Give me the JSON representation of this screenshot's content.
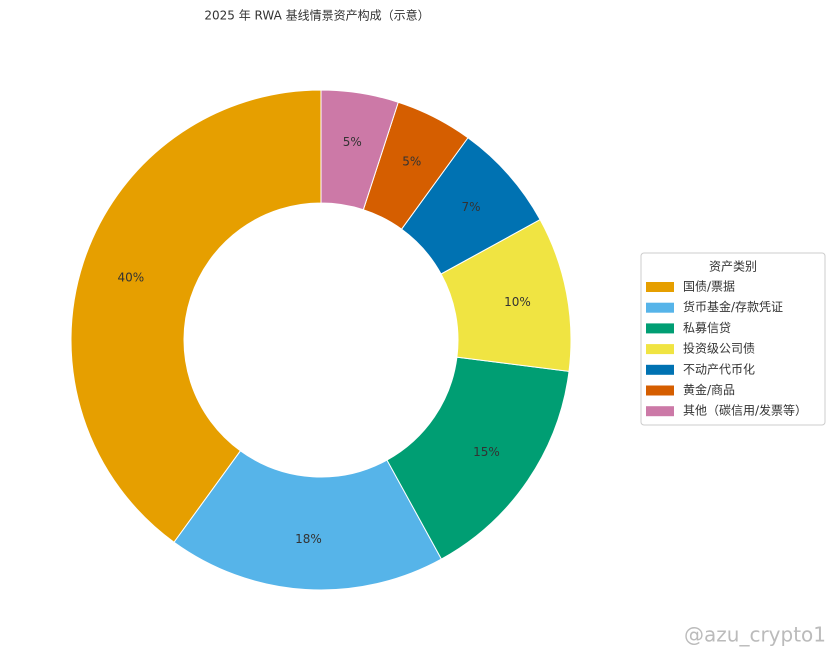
{
  "chart_data": {
    "type": "donut",
    "title": "2025 年 RWA 基线情景资产构成（示意）",
    "categories": [
      "国债/票据",
      "货币基金/存款凭证",
      "私募信贷",
      "投资级公司债",
      "不动产代币化",
      "黄金/商品",
      "其他（碳信用/发票等）"
    ],
    "values": [
      40,
      18,
      15,
      10,
      7,
      5,
      5
    ],
    "value_labels": [
      "40%",
      "18%",
      "15%",
      "10%",
      "7%",
      "5%",
      "5%"
    ],
    "colors": [
      "#E69F00",
      "#56B4E9",
      "#009E73",
      "#F0E442",
      "#0072B2",
      "#D55E00",
      "#CC79A7"
    ],
    "legend_title": "资产类别",
    "legend": "right",
    "watermark": "@azu_crypto1"
  }
}
